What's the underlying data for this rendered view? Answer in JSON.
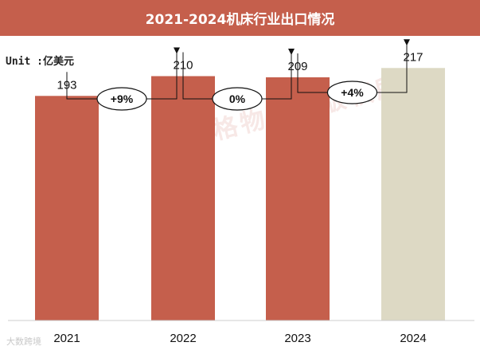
{
  "header": {
    "title": "2021-2024机床行业出口情况"
  },
  "unit_label": "Unit :亿美元",
  "watermark": "格物致胜版权所有",
  "footer_mark": "大数跨境",
  "chart_data": {
    "type": "bar",
    "title": "2021-2024机床行业出口情况",
    "categories": [
      "2021",
      "2022",
      "2023",
      "2024"
    ],
    "values": [
      193,
      210,
      209,
      217
    ],
    "value_labels": [
      "193",
      "210",
      "209",
      "217"
    ],
    "bar_colors": [
      "#c55f4c",
      "#c55f4c",
      "#c55f4c",
      "#ddd9c4"
    ],
    "ylabel": "",
    "xlabel": "",
    "ylim": [
      0,
      235
    ],
    "grid": false,
    "annotations": [
      {
        "from": "2021",
        "to": "2022",
        "label": "+9%"
      },
      {
        "from": "2022",
        "to": "2023",
        "label": "0%"
      },
      {
        "from": "2023",
        "to": "2024",
        "label": "+4%"
      }
    ]
  }
}
